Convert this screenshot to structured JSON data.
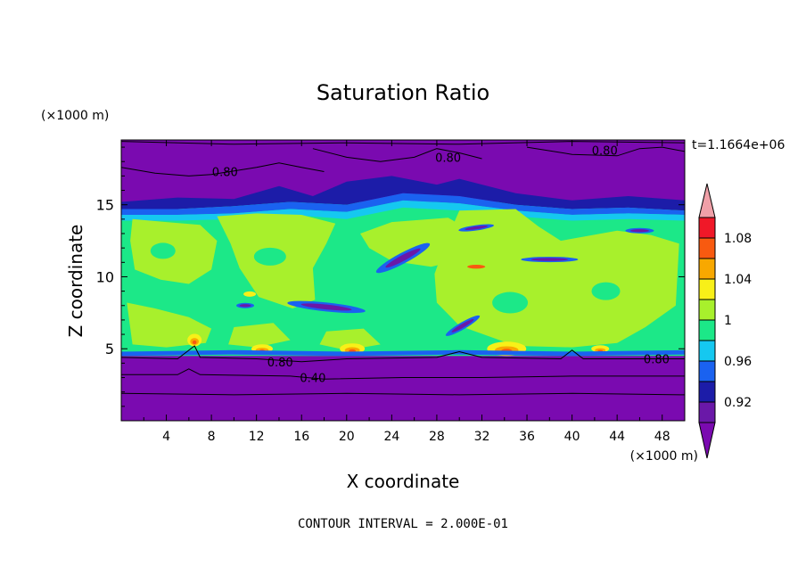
{
  "chart_data": {
    "type": "heatmap",
    "title": "Saturation Ratio",
    "xlabel": "X coordinate",
    "ylabel": "Z coordinate",
    "x_unit": "(×1000 m)",
    "y_unit": "(×1000 m)",
    "time_label": "t=1.1664e+06",
    "contour_interval": "CONTOUR INTERVAL = 2.000E-01",
    "xlim": [
      0,
      50
    ],
    "ylim": [
      0,
      19.5
    ],
    "x_ticks": [
      4,
      8,
      12,
      16,
      20,
      24,
      28,
      32,
      36,
      40,
      44,
      48
    ],
    "y_ticks": [
      5,
      10,
      15
    ],
    "colorbar": {
      "levels": [
        0.9,
        0.92,
        0.94,
        0.96,
        0.98,
        1.0,
        1.02,
        1.04,
        1.06,
        1.08,
        1.1
      ],
      "tick_labels": [
        {
          "value": 0.92,
          "text": "0.92"
        },
        {
          "value": 0.96,
          "text": "0.96"
        },
        {
          "value": 1.0,
          "text": "1"
        },
        {
          "value": 1.04,
          "text": "1.04"
        },
        {
          "value": 1.08,
          "text": "1.08"
        }
      ],
      "colors": [
        "#6a18a8",
        "#1c1ca8",
        "#1a62f0",
        "#15c8f0",
        "#1ce888",
        "#a8f02c",
        "#f8f018",
        "#f8a800",
        "#f85a10",
        "#f01828"
      ],
      "under_color": "#7a0ab0",
      "over_color": "#f0a0a8"
    },
    "contour_labels": [
      {
        "x": 9.2,
        "y": 17.3,
        "text": "0.80"
      },
      {
        "x": 29.0,
        "y": 18.3,
        "text": "0.80"
      },
      {
        "x": 42.9,
        "y": 18.8,
        "text": "0.80"
      },
      {
        "x": 14.1,
        "y": 4.1,
        "text": "0.80"
      },
      {
        "x": 47.5,
        "y": 4.3,
        "text": "0.80"
      },
      {
        "x": 17.0,
        "y": 3.0,
        "text": "0.40"
      }
    ],
    "regions": {
      "upper_dry": {
        "z_range": [
          15,
          19.5
        ],
        "value": "below 0.90"
      },
      "lower_dry": {
        "z_range": [
          0,
          4.5
        ],
        "value": "below 0.90"
      },
      "mid_band": {
        "z_range": [
          4.5,
          15
        ],
        "value": "approx 0.98-1.02"
      }
    }
  }
}
